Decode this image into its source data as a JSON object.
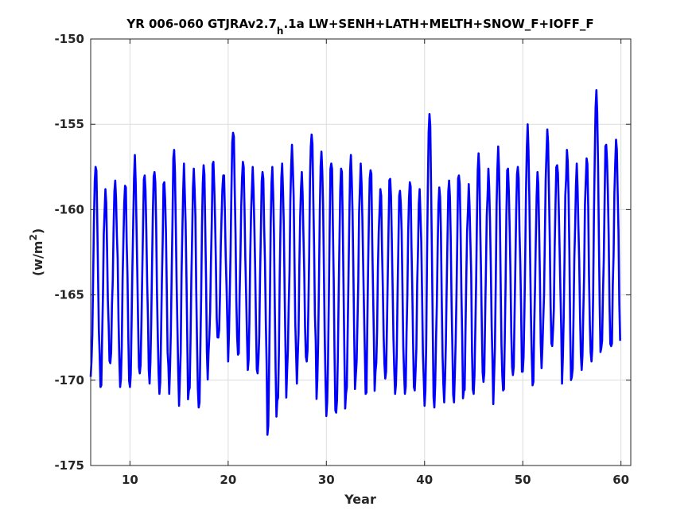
{
  "chart_data": {
    "type": "line",
    "title": "YR 006-060 GTJRAv2.7",
    "title_subscript": "h",
    "title_suffix": ".1a LW+SENH+LATH+MELTH+SNOW_F+IOFF_F",
    "xlabel": "Year",
    "ylabel": "(w/m",
    "ylabel_superscript": "2",
    "ylabel_close": ")",
    "xlim": [
      6,
      61
    ],
    "ylim": [
      -175,
      -150
    ],
    "xticks": [
      10,
      20,
      30,
      40,
      50,
      60
    ],
    "yticks": [
      -150,
      -155,
      -160,
      -165,
      -170,
      -175
    ],
    "xtick_labels": [
      "10",
      "20",
      "30",
      "40",
      "50",
      "60"
    ],
    "ytick_labels": [
      "-150",
      "-155",
      "-160",
      "-165",
      "-170",
      "-175"
    ],
    "grid": true,
    "series": [
      {
        "color": "#0000ff",
        "annual_max": [
          -157.5,
          -158.8,
          -158.3,
          -158.6,
          -156.8,
          -158.0,
          -157.8,
          -158.4,
          -156.5,
          -157.3,
          -157.6,
          -157.4,
          -157.2,
          -158.0,
          -155.5,
          -157.2,
          -157.5,
          -157.8,
          -157.5,
          -157.3,
          -156.2,
          -157.8,
          -155.6,
          -156.6,
          -157.3,
          -157.6,
          -156.8,
          -157.3,
          -157.7,
          -158.8,
          -158.2,
          -158.9,
          -158.4,
          -158.8,
          -154.4,
          -158.7,
          -158.3,
          -158.0,
          -158.5,
          -156.7,
          -157.6,
          -156.3,
          -157.6,
          -157.5,
          -155.0,
          -157.8,
          -155.3,
          -157.4,
          -156.5,
          -157.3,
          -157.0,
          -153.0,
          -156.2,
          -155.9
        ],
        "annual_min": [
          -169.8,
          -170.4,
          -169.0,
          -170.4,
          -170.4,
          -169.6,
          -170.2,
          -170.8,
          -170.8,
          -171.5,
          -170.6,
          -171.6,
          -168.4,
          -167.5,
          -168.9,
          -168.5,
          -169.4,
          -169.6,
          -173.2,
          -171.2,
          -169.5,
          -170.2,
          -168.9,
          -171.1,
          -172.1,
          -171.9,
          -170.8,
          -169.7,
          -170.8,
          -169.5,
          -169.9,
          -170.8,
          -170.8,
          -170.6,
          -171.5,
          -171.6,
          -171.3,
          -171.3,
          -170.6,
          -170.8,
          -170.1,
          -171.4,
          -170.6,
          -169.7,
          -169.5,
          -170.3,
          -168.1,
          -168.0,
          -170.2,
          -169.8,
          -169.4,
          -168.9,
          -168.1,
          -168.0
        ],
        "points_per_year": 12,
        "start_year": 6
      }
    ]
  }
}
